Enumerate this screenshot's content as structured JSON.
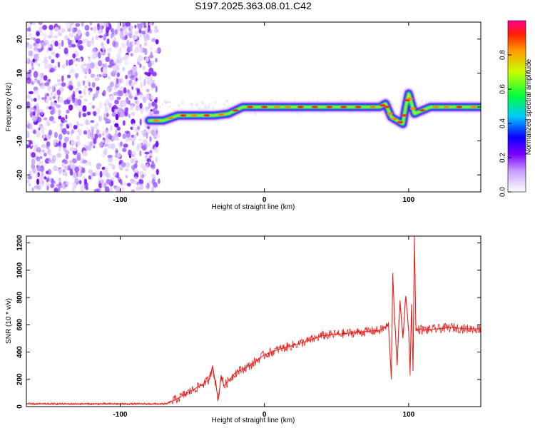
{
  "title": "S197.2025.363.08.01.C42",
  "chart_data": [
    {
      "type": "heatmap",
      "xlabel": "Height of straight line (km)",
      "ylabel": "Frequency (Hz)",
      "xlim": [
        -165,
        150
      ],
      "ylim": [
        -25,
        25
      ],
      "xticks": [
        -100,
        0,
        100
      ],
      "yticks": [
        -20,
        -10,
        0,
        10,
        20
      ],
      "colorbar": {
        "label": "Normalized spectral amplitude",
        "range": [
          0.0,
          1.0
        ],
        "ticks": [
          0.0,
          0.2,
          0.4,
          0.6,
          0.8
        ]
      },
      "noise_region_x": [
        -165,
        -73
      ],
      "ridge": {
        "x": [
          -80,
          -70,
          -60,
          -45,
          -35,
          -25,
          -15,
          -5,
          5,
          20,
          40,
          60,
          80,
          84,
          86,
          88,
          92,
          96,
          98,
          100,
          104,
          115,
          130,
          150
        ],
        "y": [
          -4,
          -4,
          -2.5,
          -2.5,
          -2.5,
          -2,
          0,
          0,
          0,
          0,
          0,
          0,
          0,
          1,
          -1,
          -3,
          -4,
          -5,
          0,
          4,
          -2,
          0,
          0,
          0
        ]
      }
    },
    {
      "type": "line",
      "xlabel": "Height of straight line (km)",
      "ylabel": "SNR (10 * v/v)",
      "xlim": [
        -165,
        150
      ],
      "ylim": [
        0,
        1250
      ],
      "xticks": [
        -100,
        0,
        100
      ],
      "yticks": [
        0,
        200,
        400,
        600,
        800,
        1000,
        1200
      ],
      "series": [
        {
          "name": "SNR",
          "color": "#e8221e",
          "x": [
            -165,
            -150,
            -130,
            -110,
            -90,
            -75,
            -68,
            -60,
            -50,
            -42,
            -38,
            -36,
            -34,
            -32,
            -30,
            -28,
            -20,
            -10,
            0,
            10,
            20,
            30,
            40,
            50,
            60,
            70,
            80,
            84,
            86,
            88,
            89,
            90,
            92,
            94,
            96,
            98,
            100,
            101,
            102,
            103,
            104,
            105,
            106,
            108,
            110,
            120,
            130,
            140,
            150
          ],
          "y": [
            20,
            20,
            20,
            20,
            20,
            20,
            20,
            60,
            120,
            170,
            200,
            300,
            180,
            50,
            230,
            150,
            250,
            300,
            380,
            420,
            450,
            480,
            520,
            530,
            540,
            550,
            560,
            580,
            600,
            200,
            980,
            700,
            300,
            780,
            500,
            810,
            560,
            250,
            750,
            260,
            1250,
            560,
            560,
            570,
            560,
            570,
            580,
            570,
            570
          ]
        }
      ]
    }
  ]
}
